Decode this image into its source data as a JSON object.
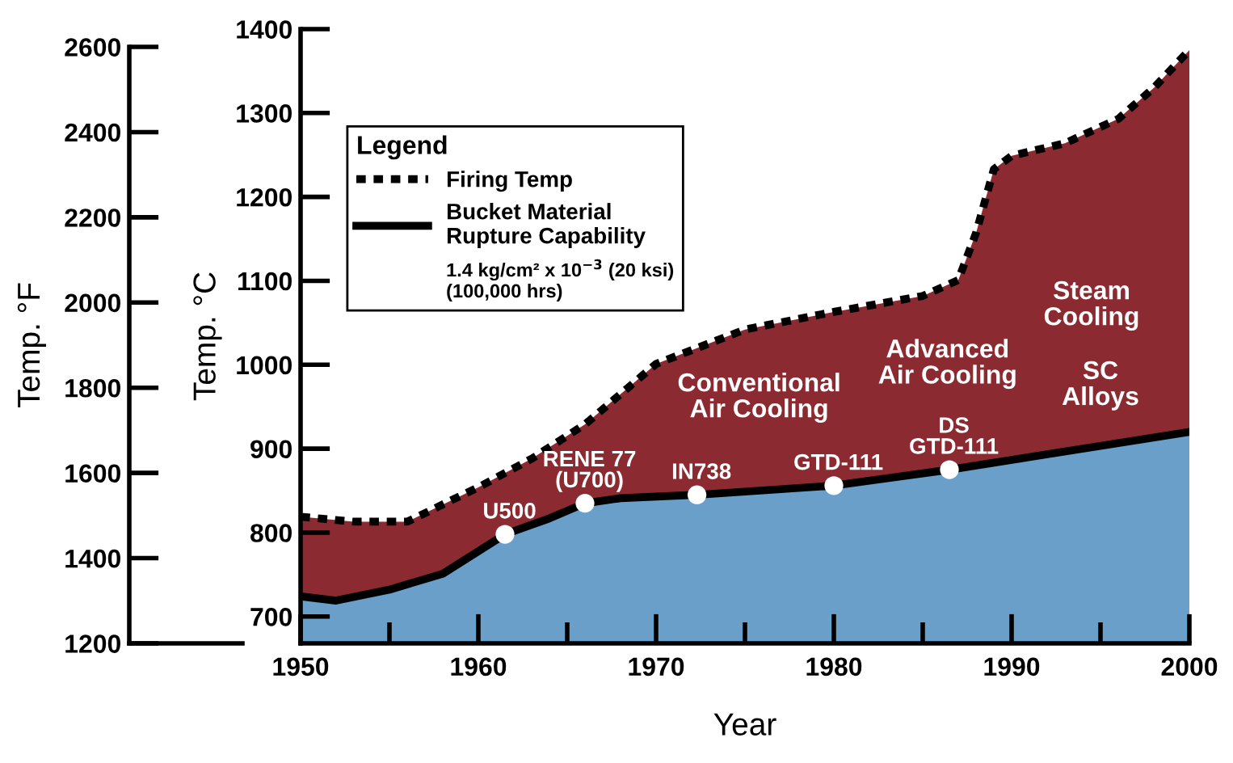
{
  "chart_data": {
    "type": "area",
    "xlabel": "Year",
    "ylabel": "Temp. °C",
    "y2label": "Temp. °F",
    "legend_title": "Legend",
    "xlim": [
      1950,
      2000
    ],
    "xticks": [
      1950,
      {
        "value": 1955,
        "label": null
      },
      1960,
      {
        "value": 1965,
        "label": null
      },
      1970,
      {
        "value": 1975,
        "label": null
      },
      1980,
      {
        "value": 1985,
        "label": null
      },
      1990,
      {
        "value": 1995,
        "label": null
      },
      2000
    ],
    "ylim": [
      668,
      1400
    ],
    "yticks": [
      700,
      800,
      900,
      1000,
      1100,
      1200,
      1300,
      1400
    ],
    "y2lim": [
      1200,
      2600
    ],
    "y2ticks": [
      1200,
      1400,
      1600,
      1800,
      2000,
      2200,
      2400,
      2600
    ],
    "grid": false,
    "legend": "top left",
    "series": [
      {
        "name": "Firing Temp",
        "color": "#8c2a31",
        "line_style": "dotted",
        "x": [
          1950,
          1953,
          1956,
          1960,
          1963,
          1966,
          1970,
          1975,
          1980,
          1985,
          1987,
          1988,
          1989,
          1990,
          1993,
          1996,
          1998,
          2000
        ],
        "values": [
          819,
          813,
          813,
          854,
          888,
          929,
          1001,
          1042,
          1063,
          1082,
          1101,
          1157,
          1233,
          1249,
          1264,
          1293,
          1330,
          1375
        ]
      },
      {
        "name": "Bucket Material\nRupture Capability",
        "color": "#6a9fca",
        "line_style": "solid",
        "x": [
          1950,
          1952,
          1955,
          1958,
          1961.5,
          1964,
          1966,
          1968,
          1972.3,
          1980,
          1986.5,
          2000
        ],
        "values": [
          724,
          719,
          732,
          751,
          798,
          817,
          835,
          841,
          845,
          856,
          875,
          920
        ]
      },
      {
        "type": "scatter",
        "color": "#ffffff",
        "marker": "circle",
        "x": [
          1961.5,
          1966,
          1972.3,
          1980,
          1986.5
        ],
        "values": [
          798,
          835,
          845,
          856,
          875
        ]
      }
    ],
    "annotations": [
      "1.4 kg/cm² x 10$^{−3}$ (20 ksi)\n(100,000 hrs)",
      {
        "text": "U500",
        "x": 1961.5,
        "y": 798
      },
      {
        "text": "RENE 77\n(U700)",
        "x": 1966,
        "y": 835
      },
      {
        "text": "IN738",
        "x": 1972.3,
        "y": 845
      },
      {
        "text": "GTD-111",
        "x": 1980,
        "y": 856
      },
      {
        "text": "DS\nGTD-111",
        "x": 1986.5,
        "y": 875
      },
      "Conventional\nAir Cooling",
      "Advanced\nAir Cooling",
      "Steam\nCooling",
      "SC\nAlloys"
    ]
  }
}
